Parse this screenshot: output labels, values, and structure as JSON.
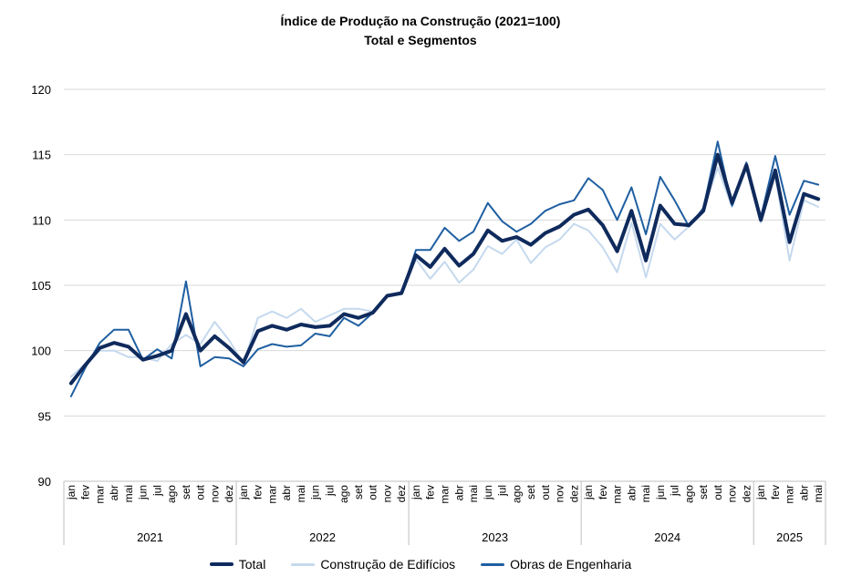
{
  "chart_data": {
    "type": "line",
    "title": "Índice de Produção na Construção (2021=100)",
    "subtitle": "Total e Segmentos",
    "xlabel": "",
    "ylabel": "",
    "ylim": [
      90,
      120
    ],
    "yticks": [
      90,
      95,
      100,
      105,
      110,
      115,
      120
    ],
    "grid": true,
    "legend_position": "bottom",
    "months": [
      "jan",
      "fev",
      "mar",
      "abr",
      "mai",
      "jun",
      "jul",
      "ago",
      "set",
      "out",
      "nov",
      "dez",
      "jan",
      "fev",
      "mar",
      "abr",
      "mai",
      "jun",
      "jul",
      "ago",
      "set",
      "out",
      "nov",
      "dez",
      "jan",
      "fev",
      "mar",
      "abr",
      "mai",
      "jun",
      "jul",
      "ago",
      "set",
      "out",
      "nov",
      "dez",
      "jan",
      "fev",
      "mar",
      "abr",
      "mai",
      "jun",
      "jul",
      "ago",
      "set",
      "out",
      "nov",
      "dez",
      "jan",
      "fev",
      "mar",
      "abr",
      "mai"
    ],
    "years": [
      {
        "label": "2021",
        "months": 12
      },
      {
        "label": "2022",
        "months": 12
      },
      {
        "label": "2023",
        "months": 12
      },
      {
        "label": "2024",
        "months": 12
      },
      {
        "label": "2025",
        "months": 5
      }
    ],
    "series": [
      {
        "name": "Construção de Edifícios",
        "color": "#c5d9ee",
        "width": 2,
        "values": [
          98.0,
          99.0,
          100.0,
          100.0,
          99.5,
          99.5,
          99.2,
          100.5,
          101.2,
          100.5,
          102.2,
          100.8,
          99.0,
          102.5,
          103.0,
          102.5,
          103.2,
          102.2,
          102.7,
          103.2,
          103.2,
          103.0,
          104.2,
          104.5,
          107.0,
          105.5,
          106.8,
          105.2,
          106.2,
          108.0,
          107.4,
          108.5,
          106.7,
          107.9,
          108.5,
          109.7,
          109.2,
          107.9,
          106.0,
          109.8,
          105.6,
          109.7,
          108.5,
          109.5,
          110.8,
          114.0,
          111.0,
          114.0,
          109.8,
          113.4,
          106.9,
          111.5,
          111.0
        ]
      },
      {
        "name": "Obras de Engenharia",
        "color": "#1f5fa1",
        "width": 2,
        "values": [
          96.5,
          98.7,
          100.6,
          101.6,
          101.6,
          99.3,
          100.1,
          99.4,
          105.3,
          98.8,
          99.5,
          99.4,
          98.8,
          100.1,
          100.5,
          100.3,
          100.4,
          101.3,
          101.1,
          102.5,
          101.9,
          102.9,
          104.2,
          104.4,
          107.7,
          107.7,
          109.4,
          108.4,
          109.1,
          111.3,
          109.9,
          109.1,
          109.7,
          110.7,
          111.2,
          111.5,
          113.2,
          112.3,
          110.0,
          112.5,
          108.9,
          113.3,
          111.5,
          109.5,
          110.9,
          116.0,
          111.1,
          114.4,
          110.2,
          114.9,
          110.4,
          113.0,
          112.7
        ]
      },
      {
        "name": "Total",
        "color": "#0f2a5c",
        "width": 4,
        "values": [
          97.5,
          98.9,
          100.2,
          100.6,
          100.3,
          99.3,
          99.6,
          100.0,
          102.8,
          100.0,
          101.1,
          100.2,
          99.1,
          101.5,
          101.9,
          101.6,
          102.0,
          101.8,
          101.9,
          102.8,
          102.5,
          102.9,
          104.2,
          104.4,
          107.3,
          106.4,
          107.8,
          106.5,
          107.4,
          109.2,
          108.4,
          108.7,
          108.1,
          109.0,
          109.5,
          110.4,
          110.8,
          109.6,
          107.6,
          110.7,
          106.9,
          111.1,
          109.7,
          109.6,
          110.7,
          115.0,
          111.3,
          114.2,
          110.0,
          113.8,
          108.3,
          112.0,
          111.6
        ]
      }
    ]
  },
  "legend": [
    {
      "label": "Total",
      "color": "#0f2a5c",
      "thickness": 4
    },
    {
      "label": "Construção de Edifícios",
      "color": "#c5d9ee",
      "thickness": 3
    },
    {
      "label": "Obras de Engenharia",
      "color": "#1f5fa1",
      "thickness": 3
    }
  ]
}
